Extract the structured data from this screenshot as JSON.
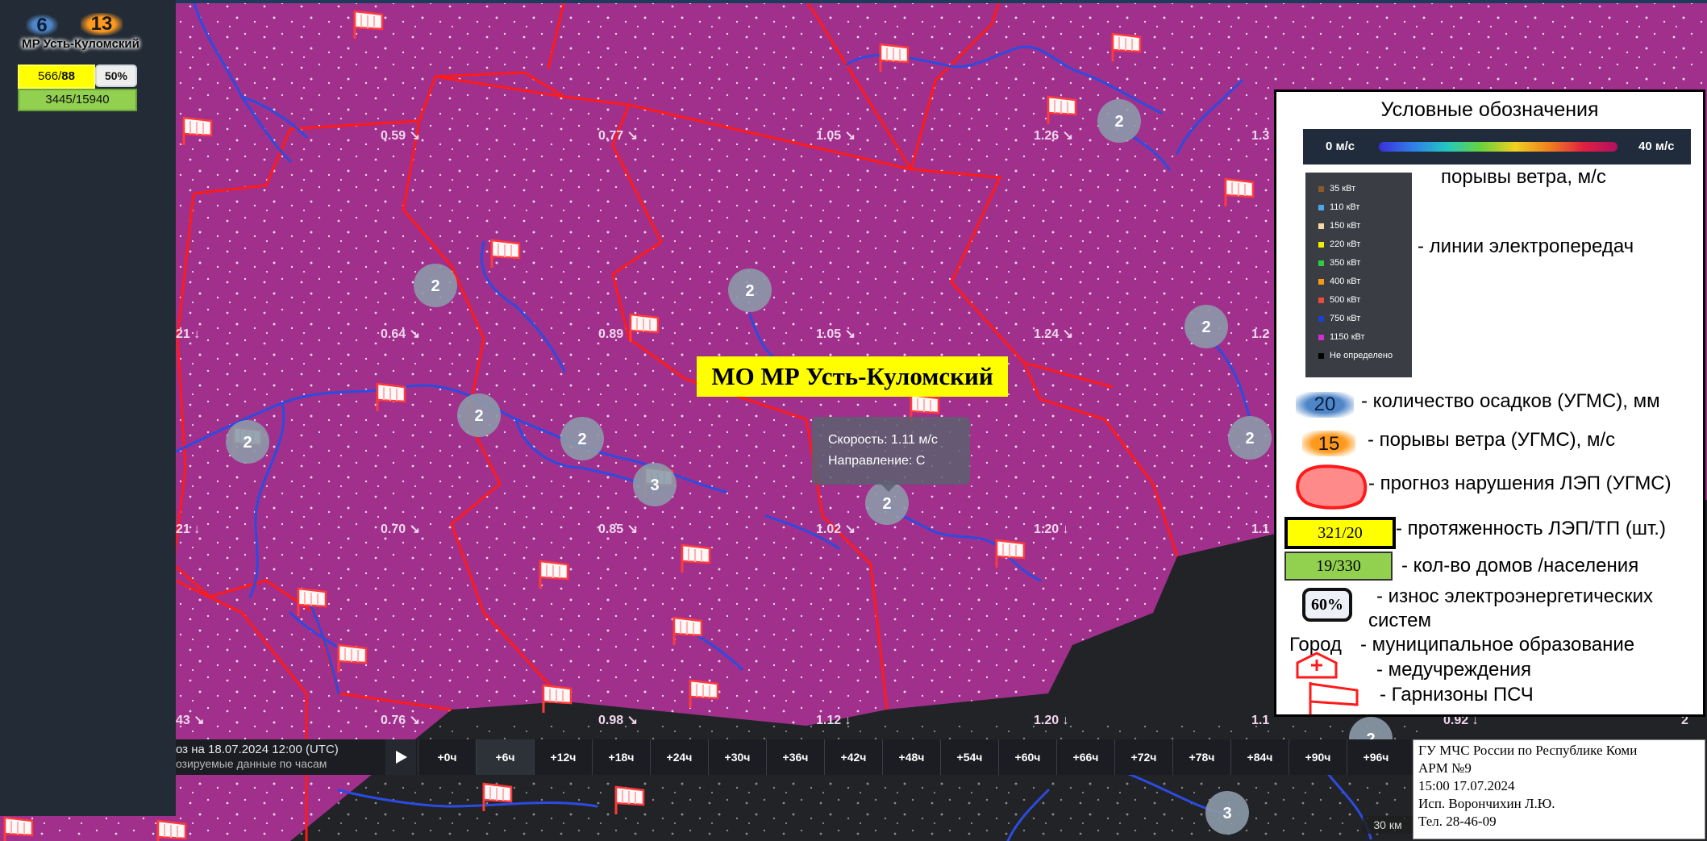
{
  "sidebar": {
    "precip_value": "6",
    "gust_value": "13",
    "area_name": "МР Усть-Куломский",
    "lep_length": "566",
    "tp_count": "88",
    "wear_percent": "50%",
    "houses_population": "3445/15940"
  },
  "map": {
    "mo_label": "МО МР Усть-Куломский",
    "tooltip": {
      "speed": "Скорость: 1.11 м/с",
      "direction": "Направление: С"
    },
    "cluster_counts": [
      "2",
      "2",
      "2",
      "2",
      "2",
      "2",
      "2",
      "2",
      "2",
      "2",
      "3",
      "3"
    ],
    "wind_labels": [
      "0.59 ↘",
      "0.77 ↘",
      "1.05 ↘",
      "1.26 ↘",
      "1.3",
      "0.64 ↘",
      "0.89",
      "1.05 ↘",
      "1.24 ↘",
      "1.2",
      "0.70 ↘",
      "0.85 ↘",
      "1.02 ↘",
      "1.20 ↓",
      "1.1",
      "0.76 ↘",
      "0.98 ↘",
      "1.12 ↓",
      "1.20 ↓",
      "1.1",
      "0.92 ↓",
      "2",
      "21 ↓",
      "21 ↓",
      "43 ↘"
    ],
    "scale_label": "30 км"
  },
  "legend": {
    "title": "Условные обозначения",
    "wind_min": "0 м/с",
    "wind_max": "40 м/с",
    "wind_caption": "порывы ветра, м/с",
    "voltages": [
      "35 кВт",
      "110 кВт",
      "150 кВт",
      "220 кВт",
      "350 кВт",
      "400 кВт",
      "500 кВт",
      "750 кВт",
      "1150 кВт",
      "Не определено"
    ],
    "voltage_colors": [
      "#8b5a2b",
      "#4aa8e8",
      "#f5d9a8",
      "#f0f000",
      "#2ecc40",
      "#f39c12",
      "#e74c3c",
      "#1f3fcf",
      "#d02fd0",
      "#000000"
    ],
    "power_lines_caption": "- линии электропередач",
    "precip_sample": "20",
    "precip_caption": "- количество осадков (УГМС), мм",
    "gust_sample": "15",
    "gust_caption": "- порывы ветра (УГМС), м/с",
    "forecast_caption": "- прогноз нарушения ЛЭП (УГМС)",
    "lep_sample": "321/20",
    "lep_caption": "- протяженность ЛЭП/ТП (шт.)",
    "houses_sample": "19/330",
    "houses_caption": "- кол-во домов /населения",
    "wear_sample": "60%",
    "wear_caption_1": "- износ электроэнергетических",
    "wear_caption_2": "систем",
    "city_sample": "Город",
    "city_caption": "- муниципальное образование",
    "med_caption": "- медучреждения",
    "garrison_caption": "- Гарнизоны ПСЧ"
  },
  "timebar": {
    "forecast_label": "оз на 18.07.2024 12:00 (UTC)",
    "sub_label": "озируемые данные по часам",
    "steps": [
      "+0ч",
      "+6ч",
      "+12ч",
      "+18ч",
      "+24ч",
      "+30ч",
      "+36ч",
      "+42ч",
      "+48ч",
      "+54ч",
      "+60ч",
      "+66ч",
      "+72ч",
      "+78ч",
      "+84ч",
      "+90ч",
      "+96ч"
    ],
    "active_step": "+6ч"
  },
  "stamp": {
    "line1": "ГУ МЧС России по Республике Коми",
    "line2": "АРМ №9",
    "line3": "15:00  17.07.2024",
    "line4": "Исп. Ворончихин Л.Ю.",
    "line5": "Тел. 28-46-09"
  }
}
